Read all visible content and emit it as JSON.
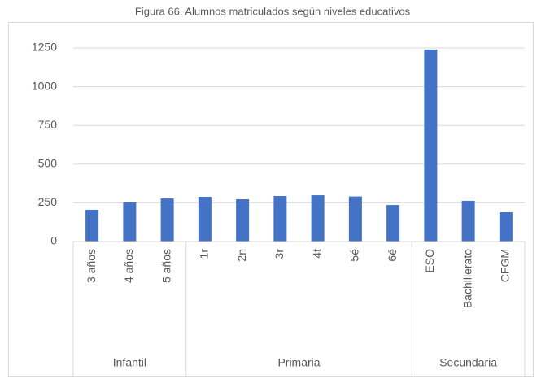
{
  "chart_data": {
    "type": "bar",
    "title": "Figura 66. Alumnos matriculados según niveles educativos",
    "groups": [
      {
        "name": "Infantil",
        "categories": [
          "3 años",
          "4 años",
          "5 años"
        ],
        "values": [
          205,
          252,
          278
        ]
      },
      {
        "name": "Primaria",
        "categories": [
          "1r",
          "2n",
          "3r",
          "4t",
          "5é",
          "6é"
        ],
        "values": [
          289,
          273,
          294,
          299,
          291,
          236
        ]
      },
      {
        "name": "Secundaria",
        "categories": [
          "ESO",
          "Bachillerato",
          "CFGM"
        ],
        "values": [
          1240,
          263,
          189
        ]
      }
    ],
    "color": "#4472c4",
    "ylim": [
      0,
      1250
    ],
    "yticks": [
      0,
      250,
      500,
      750,
      1000,
      1250
    ],
    "grid": true
  }
}
